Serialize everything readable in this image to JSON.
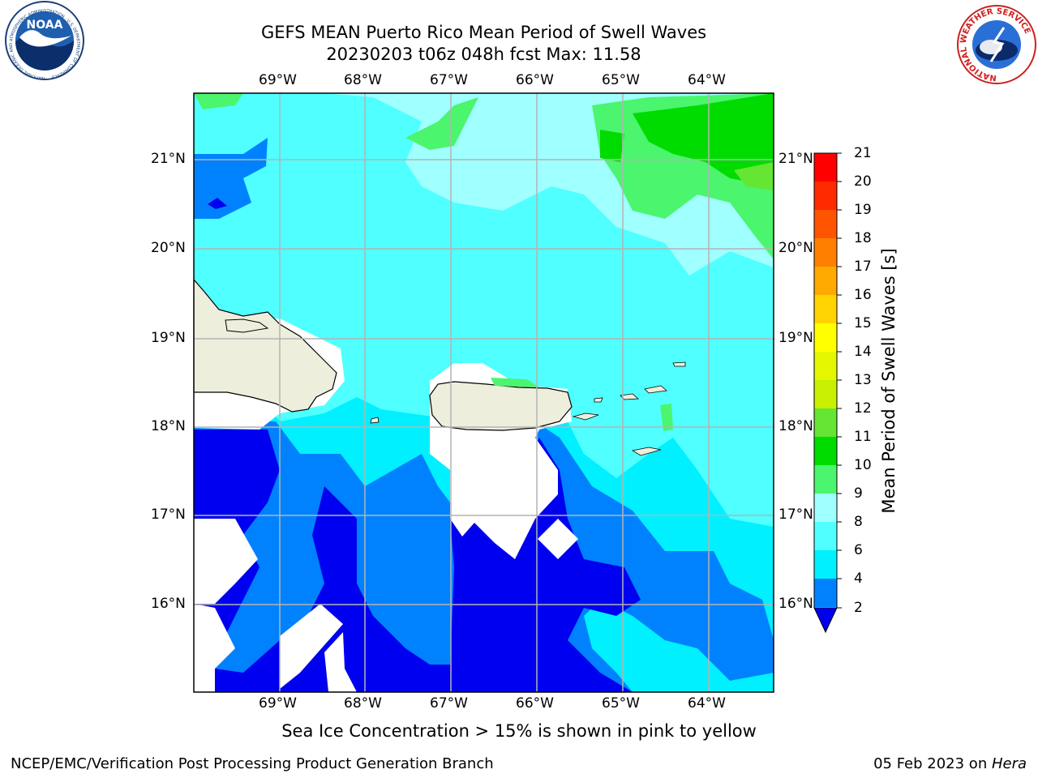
{
  "title": {
    "line1": "GEFS MEAN Puerto Rico Mean Period of Swell Waves",
    "line2": "20230203 t06z 048h fcst   Max: 11.58"
  },
  "map": {
    "lon_labels": [
      "69°W",
      "68°W",
      "67°W",
      "66°W",
      "65°W",
      "64°W"
    ],
    "lat_labels": [
      "21°N",
      "20°N",
      "19°N",
      "18°N",
      "17°N",
      "16°N"
    ]
  },
  "colorbar": {
    "label": "Mean Period of Swell Waves [s]",
    "ticks": [
      "21",
      "20",
      "19",
      "18",
      "17",
      "16",
      "15",
      "14",
      "13",
      "12",
      "11",
      "10",
      "9",
      "8",
      "6",
      "4",
      "2"
    ],
    "colors": [
      "#ff0000",
      "#ff2a00",
      "#ff5500",
      "#ff8000",
      "#ffaa00",
      "#ffd400",
      "#ffff00",
      "#e4f700",
      "#c8f000",
      "#64e632",
      "#00dc00",
      "#4bf56e",
      "#a0ffff",
      "#50ffff",
      "#00f0ff",
      "#0082ff",
      "#0000f0"
    ]
  },
  "caption": "Sea Ice Concentration > 15% is shown in pink to yellow",
  "footer": {
    "left": "NCEP/EMC/Verification Post Processing Product Generation Branch",
    "date": "05 Feb 2023 on ",
    "machine": "Hera"
  },
  "logos": {
    "noaa_text": "NOAA",
    "noaa_ring": "NATIONAL OCEANIC AND ATMOSPHERIC ADMINISTRATION · U.S. DEPARTMENT OF COMMERCE",
    "nws_ring": "NATIONAL WEATHER SERVICE"
  }
}
